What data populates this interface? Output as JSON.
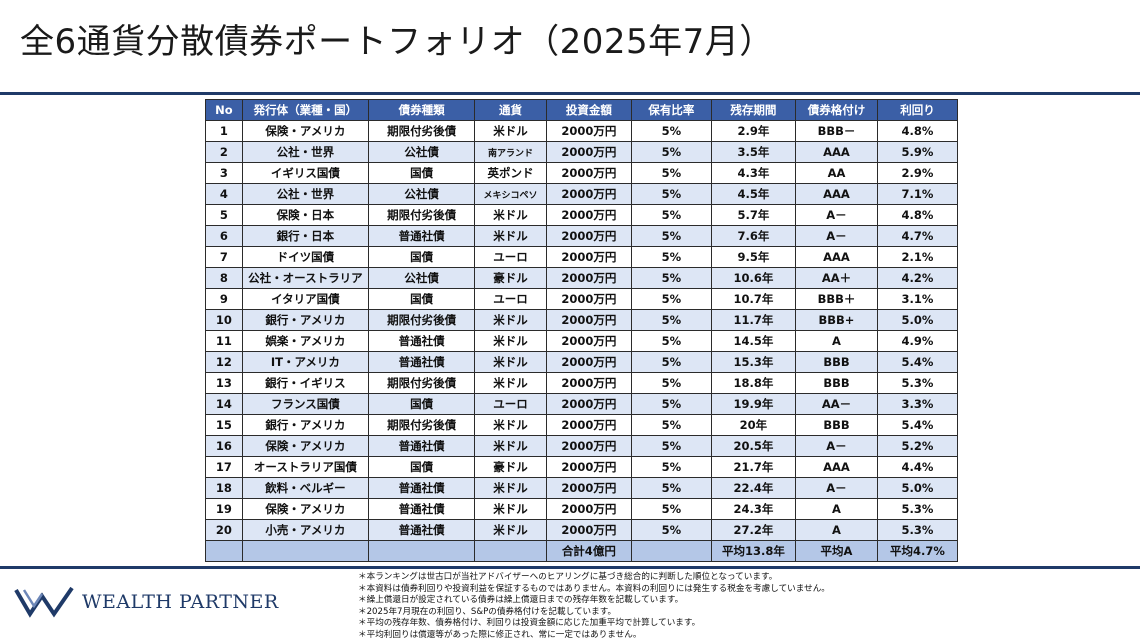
{
  "title": "全6通貨分散債券ポートフォリオ（2025年7月）",
  "table": {
    "headers": [
      "No",
      "発行体（業種・国）",
      "債券種類",
      "通貨",
      "投資金額",
      "保有比率",
      "残存期間",
      "債券格付け",
      "利回り"
    ],
    "rows": [
      [
        "1",
        "保険・アメリカ",
        "期限付劣後債",
        "米ドル",
        "2000万円",
        "5%",
        "2.9年",
        "BBB－",
        "4.8%"
      ],
      [
        "2",
        "公社・世界",
        "公社債",
        "南アランド",
        "2000万円",
        "5%",
        "3.5年",
        "AAA",
        "5.9%"
      ],
      [
        "3",
        "イギリス国債",
        "国債",
        "英ポンド",
        "2000万円",
        "5%",
        "4.3年",
        "AA",
        "2.9%"
      ],
      [
        "4",
        "公社・世界",
        "公社債",
        "メキシコペソ",
        "2000万円",
        "5%",
        "4.5年",
        "AAA",
        "7.1%"
      ],
      [
        "5",
        "保険・日本",
        "期限付劣後債",
        "米ドル",
        "2000万円",
        "5%",
        "5.7年",
        "A－",
        "4.8%"
      ],
      [
        "6",
        "銀行・日本",
        "普通社債",
        "米ドル",
        "2000万円",
        "5%",
        "7.6年",
        "A－",
        "4.7%"
      ],
      [
        "7",
        "ドイツ国債",
        "国債",
        "ユーロ",
        "2000万円",
        "5%",
        "9.5年",
        "AAA",
        "2.1%"
      ],
      [
        "8",
        "公社・オーストラリア",
        "公社債",
        "豪ドル",
        "2000万円",
        "5%",
        "10.6年",
        "AA＋",
        "4.2%"
      ],
      [
        "9",
        "イタリア国債",
        "国債",
        "ユーロ",
        "2000万円",
        "5%",
        "10.7年",
        "BBB＋",
        "3.1%"
      ],
      [
        "10",
        "銀行・アメリカ",
        "期限付劣後債",
        "米ドル",
        "2000万円",
        "5%",
        "11.7年",
        "BBB+",
        "5.0%"
      ],
      [
        "11",
        "娯楽・アメリカ",
        "普通社債",
        "米ドル",
        "2000万円",
        "5%",
        "14.5年",
        "A",
        "4.9%"
      ],
      [
        "12",
        "IT・アメリカ",
        "普通社債",
        "米ドル",
        "2000万円",
        "5%",
        "15.3年",
        "BBB",
        "5.4%"
      ],
      [
        "13",
        "銀行・イギリス",
        "期限付劣後債",
        "米ドル",
        "2000万円",
        "5%",
        "18.8年",
        "BBB",
        "5.3%"
      ],
      [
        "14",
        "フランス国債",
        "国債",
        "ユーロ",
        "2000万円",
        "5%",
        "19.9年",
        "AA－",
        "3.3%"
      ],
      [
        "15",
        "銀行・アメリカ",
        "期限付劣後債",
        "米ドル",
        "2000万円",
        "5%",
        "20年",
        "BBB",
        "5.4%"
      ],
      [
        "16",
        "保険・アメリカ",
        "普通社債",
        "米ドル",
        "2000万円",
        "5%",
        "20.5年",
        "A－",
        "5.2%"
      ],
      [
        "17",
        "オーストラリア国債",
        "国債",
        "豪ドル",
        "2000万円",
        "5%",
        "21.7年",
        "AAA",
        "4.4%"
      ],
      [
        "18",
        "飲料・ベルギー",
        "普通社債",
        "米ドル",
        "2000万円",
        "5%",
        "22.4年",
        "A－",
        "5.0%"
      ],
      [
        "19",
        "保険・アメリカ",
        "普通社債",
        "米ドル",
        "2000万円",
        "5%",
        "24.3年",
        "A",
        "5.3%"
      ],
      [
        "20",
        "小売・アメリカ",
        "普通社債",
        "米ドル",
        "2000万円",
        "5%",
        "27.2年",
        "A",
        "5.3%"
      ]
    ],
    "footer": [
      "",
      "",
      "",
      "",
      "合計4億円",
      "",
      "平均13.8年",
      "平均A",
      "平均4.7%"
    ]
  },
  "logo": {
    "text": "WEALTH PARTNER",
    "color": "#1f3a68"
  },
  "notes": [
    "＊本ランキングは世古口が当社アドバイザーへのヒアリングに基づき総合的に判断した順位となっています。",
    "＊本資料は債券利回りや投資利益を保証するものではありません。本資料の利回りには発生する税金を考慮していません。",
    "＊繰上償還日が設定されている債券は繰上償還日までの残存年数を記載しています。",
    "＊2025年7月現在の利回り、S&Pの債券格付けを記載しています。",
    "＊平均の残存年数、債券格付け、利回りは投資金額に応じた加重平均で計算しています。",
    "＊平均利回りは償還等があった際に修正され、常に一定ではありません。"
  ],
  "colors": {
    "header": "#3b5fa6",
    "stripe": "#dde6f5",
    "footer": "#b4c7e7",
    "rule": "#1f3a68"
  }
}
